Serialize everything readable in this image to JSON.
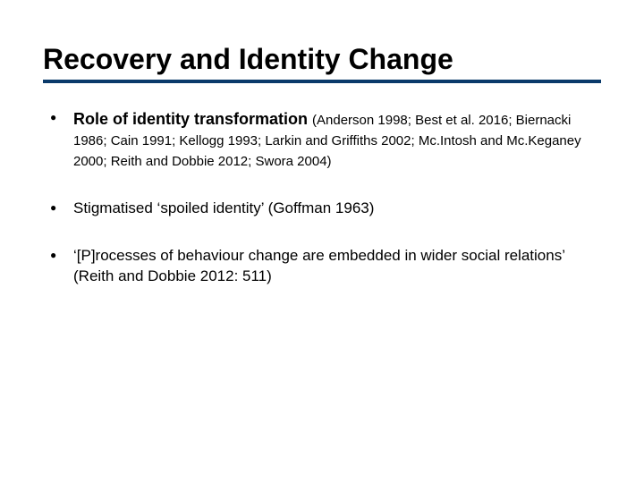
{
  "title": "Recovery and Identity Change",
  "underline_color": "#0a3a6a",
  "background_color": "#ffffff",
  "text_color": "#000000",
  "title_fontsize": 32,
  "body_fontsize": 17,
  "refs_fontsize": 15,
  "bullets": [
    {
      "lead": "Role of identity transformation ",
      "refs": "(Anderson 1998; Best et al. 2016; Biernacki 1986; Cain 1991; Kellogg 1993; Larkin and Griffiths 2002; Mc.Intosh and Mc.Keganey 2000; Reith and Dobbie 2012; Swora 2004)"
    },
    {
      "text": "Stigmatised ‘spoiled identity’ (Goffman 1963)"
    },
    {
      "text": "‘[P]rocesses of behaviour change are embedded in wider social relations’ (Reith and Dobbie 2012: 511)"
    }
  ]
}
